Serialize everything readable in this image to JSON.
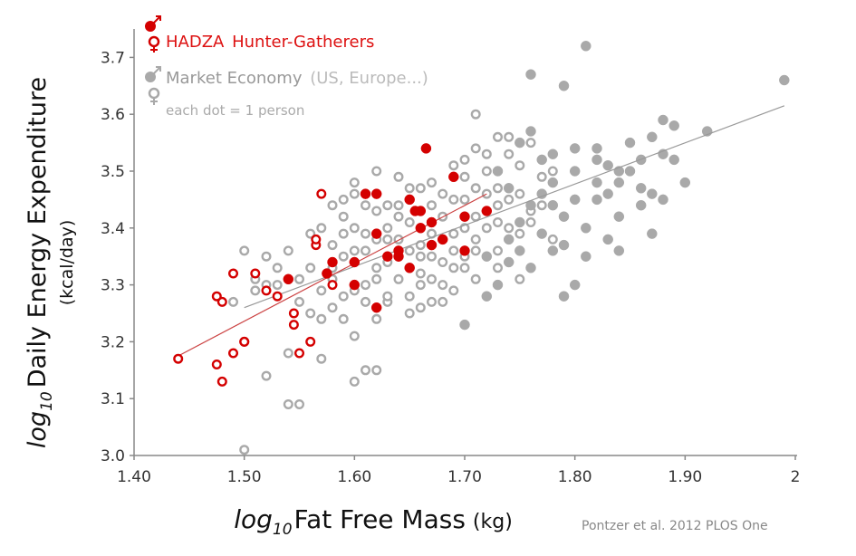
{
  "chart_data": {
    "type": "scatter",
    "ylabel_prefix": "log",
    "ylabel_sub": "10",
    "ylabel": "Daily Energy Expenditure",
    "ylabel_unit": "(kcal/day)",
    "xlabel_prefix": "log",
    "xlabel_sub": "10",
    "xlabel": "Fat Free Mass",
    "xlabel_unit": "(kg)",
    "xlim": [
      1.4,
      2.0
    ],
    "ylim": [
      3.0,
      3.75
    ],
    "x_ticks": [
      "1.40",
      "1.50",
      "1.60",
      "1.70",
      "1.80",
      "1.90",
      "2"
    ],
    "y_ticks": [
      "3.0",
      "3.1",
      "3.2",
      "3.3",
      "3.4",
      "3.5",
      "3.6",
      "3.7"
    ],
    "grid": false,
    "legend": {
      "placement": "top-left",
      "hadza_label": "HADZA",
      "hadza_desc": "Hunter-Gatherers",
      "market_label": "Market Economy",
      "market_desc": "(US, Europe...)",
      "note": "each dot = 1 person"
    },
    "citation": "Pontzer et al. 2012 PLOS One",
    "colors": {
      "hadza": "#d40000",
      "market": "#a9a9a9"
    },
    "series": [
      {
        "name": "HADZA Hunter-Gatherers",
        "fit": {
          "x": [
            1.44,
            1.72
          ],
          "y": [
            3.175,
            3.46
          ]
        },
        "male": [
          [
            1.54,
            3.31
          ],
          [
            1.58,
            3.34
          ],
          [
            1.6,
            3.34
          ],
          [
            1.61,
            3.46
          ],
          [
            1.62,
            3.46
          ],
          [
            1.62,
            3.39
          ],
          [
            1.63,
            3.35
          ],
          [
            1.64,
            3.35
          ],
          [
            1.65,
            3.45
          ],
          [
            1.655,
            3.43
          ],
          [
            1.66,
            3.43
          ],
          [
            1.66,
            3.4
          ],
          [
            1.665,
            3.54
          ],
          [
            1.67,
            3.41
          ],
          [
            1.68,
            3.38
          ],
          [
            1.69,
            3.49
          ],
          [
            1.7,
            3.42
          ],
          [
            1.7,
            3.36
          ],
          [
            1.72,
            3.43
          ],
          [
            1.65,
            3.33
          ],
          [
            1.62,
            3.26
          ],
          [
            1.575,
            3.32
          ],
          [
            1.64,
            3.36
          ],
          [
            1.6,
            3.3
          ],
          [
            1.67,
            3.37
          ]
        ],
        "female": [
          [
            1.44,
            3.17
          ],
          [
            1.475,
            3.28
          ],
          [
            1.48,
            3.27
          ],
          [
            1.49,
            3.32
          ],
          [
            1.5,
            3.2
          ],
          [
            1.51,
            3.32
          ],
          [
            1.52,
            3.29
          ],
          [
            1.53,
            3.28
          ],
          [
            1.545,
            3.25
          ],
          [
            1.55,
            3.18
          ],
          [
            1.56,
            3.2
          ],
          [
            1.565,
            3.37
          ],
          [
            1.57,
            3.46
          ],
          [
            1.58,
            3.3
          ],
          [
            1.49,
            3.18
          ],
          [
            1.475,
            3.16
          ],
          [
            1.48,
            3.13
          ],
          [
            1.5,
            3.2
          ],
          [
            1.565,
            3.38
          ],
          [
            1.545,
            3.23
          ]
        ]
      },
      {
        "name": "Market Economy",
        "fit": {
          "x": [
            1.5,
            1.99
          ],
          "y": [
            3.26,
            3.615
          ]
        },
        "male": [
          [
            1.73,
            3.5
          ],
          [
            1.74,
            3.47
          ],
          [
            1.75,
            3.55
          ],
          [
            1.76,
            3.67
          ],
          [
            1.77,
            3.52
          ],
          [
            1.78,
            3.48
          ],
          [
            1.79,
            3.65
          ],
          [
            1.8,
            3.45
          ],
          [
            1.81,
            3.72
          ],
          [
            1.82,
            3.52
          ],
          [
            1.83,
            3.46
          ],
          [
            1.84,
            3.48
          ],
          [
            1.85,
            3.55
          ],
          [
            1.86,
            3.44
          ],
          [
            1.87,
            3.56
          ],
          [
            1.88,
            3.59
          ],
          [
            1.89,
            3.58
          ],
          [
            1.92,
            3.57
          ],
          [
            1.99,
            3.66
          ],
          [
            1.75,
            3.41
          ],
          [
            1.76,
            3.33
          ],
          [
            1.77,
            3.39
          ],
          [
            1.78,
            3.36
          ],
          [
            1.79,
            3.42
          ],
          [
            1.8,
            3.3
          ],
          [
            1.81,
            3.4
          ],
          [
            1.82,
            3.45
          ],
          [
            1.83,
            3.38
          ],
          [
            1.84,
            3.42
          ],
          [
            1.86,
            3.47
          ],
          [
            1.87,
            3.39
          ],
          [
            1.88,
            3.53
          ],
          [
            1.89,
            3.52
          ],
          [
            1.9,
            3.48
          ],
          [
            1.74,
            3.38
          ],
          [
            1.72,
            3.35
          ],
          [
            1.73,
            3.3
          ],
          [
            1.76,
            3.44
          ],
          [
            1.78,
            3.53
          ],
          [
            1.8,
            3.5
          ],
          [
            1.82,
            3.48
          ],
          [
            1.85,
            3.5
          ],
          [
            1.86,
            3.52
          ],
          [
            1.87,
            3.46
          ],
          [
            1.77,
            3.46
          ],
          [
            1.79,
            3.37
          ],
          [
            1.81,
            3.35
          ],
          [
            1.84,
            3.36
          ],
          [
            1.83,
            3.51
          ],
          [
            1.7,
            3.23
          ],
          [
            1.72,
            3.28
          ],
          [
            1.75,
            3.36
          ],
          [
            1.78,
            3.44
          ],
          [
            1.8,
            3.54
          ],
          [
            1.84,
            3.5
          ],
          [
            1.79,
            3.28
          ],
          [
            1.74,
            3.34
          ],
          [
            1.88,
            3.45
          ],
          [
            1.76,
            3.57
          ],
          [
            1.82,
            3.54
          ]
        ],
        "female": [
          [
            1.49,
            3.27
          ],
          [
            1.5,
            3.36
          ],
          [
            1.5,
            3.01
          ],
          [
            1.51,
            3.31
          ],
          [
            1.52,
            3.3
          ],
          [
            1.52,
            3.14
          ],
          [
            1.53,
            3.33
          ],
          [
            1.54,
            3.09
          ],
          [
            1.54,
            3.18
          ],
          [
            1.55,
            3.27
          ],
          [
            1.55,
            3.09
          ],
          [
            1.56,
            3.25
          ],
          [
            1.57,
            3.24
          ],
          [
            1.57,
            3.17
          ],
          [
            1.58,
            3.33
          ],
          [
            1.59,
            3.28
          ],
          [
            1.59,
            3.24
          ],
          [
            1.6,
            3.13
          ],
          [
            1.61,
            3.15
          ],
          [
            1.62,
            3.15
          ],
          [
            1.6,
            3.4
          ],
          [
            1.61,
            3.3
          ],
          [
            1.62,
            3.33
          ],
          [
            1.63,
            3.27
          ],
          [
            1.63,
            3.38
          ],
          [
            1.64,
            3.31
          ],
          [
            1.64,
            3.42
          ],
          [
            1.65,
            3.36
          ],
          [
            1.65,
            3.28
          ],
          [
            1.66,
            3.32
          ],
          [
            1.66,
            3.26
          ],
          [
            1.67,
            3.35
          ],
          [
            1.67,
            3.44
          ],
          [
            1.68,
            3.3
          ],
          [
            1.68,
            3.38
          ],
          [
            1.69,
            3.33
          ],
          [
            1.69,
            3.45
          ],
          [
            1.7,
            3.4
          ],
          [
            1.7,
            3.52
          ],
          [
            1.71,
            3.36
          ],
          [
            1.71,
            3.47
          ],
          [
            1.72,
            3.4
          ],
          [
            1.72,
            3.53
          ],
          [
            1.73,
            3.44
          ],
          [
            1.73,
            3.36
          ],
          [
            1.74,
            3.4
          ],
          [
            1.74,
            3.56
          ],
          [
            1.75,
            3.46
          ],
          [
            1.75,
            3.51
          ],
          [
            1.76,
            3.43
          ],
          [
            1.58,
            3.37
          ],
          [
            1.59,
            3.42
          ],
          [
            1.6,
            3.36
          ],
          [
            1.61,
            3.39
          ],
          [
            1.62,
            3.43
          ],
          [
            1.63,
            3.4
          ],
          [
            1.64,
            3.38
          ],
          [
            1.65,
            3.41
          ],
          [
            1.66,
            3.37
          ],
          [
            1.67,
            3.39
          ],
          [
            1.68,
            3.42
          ],
          [
            1.69,
            3.36
          ],
          [
            1.7,
            3.45
          ],
          [
            1.71,
            3.42
          ],
          [
            1.72,
            3.46
          ],
          [
            1.73,
            3.41
          ],
          [
            1.74,
            3.45
          ],
          [
            1.57,
            3.29
          ],
          [
            1.58,
            3.31
          ],
          [
            1.59,
            3.35
          ],
          [
            1.6,
            3.29
          ],
          [
            1.61,
            3.36
          ],
          [
            1.62,
            3.31
          ],
          [
            1.63,
            3.34
          ],
          [
            1.64,
            3.35
          ],
          [
            1.65,
            3.33
          ],
          [
            1.66,
            3.35
          ],
          [
            1.67,
            3.31
          ],
          [
            1.68,
            3.34
          ],
          [
            1.69,
            3.39
          ],
          [
            1.7,
            3.33
          ],
          [
            1.71,
            3.38
          ],
          [
            1.56,
            3.33
          ],
          [
            1.55,
            3.31
          ],
          [
            1.54,
            3.36
          ],
          [
            1.53,
            3.3
          ],
          [
            1.59,
            3.45
          ],
          [
            1.6,
            3.48
          ],
          [
            1.62,
            3.5
          ],
          [
            1.64,
            3.49
          ],
          [
            1.66,
            3.47
          ],
          [
            1.68,
            3.46
          ],
          [
            1.7,
            3.49
          ],
          [
            1.72,
            3.5
          ],
          [
            1.73,
            3.56
          ],
          [
            1.74,
            3.53
          ],
          [
            1.76,
            3.55
          ],
          [
            1.77,
            3.49
          ],
          [
            1.78,
            3.5
          ],
          [
            1.57,
            3.4
          ],
          [
            1.58,
            3.26
          ],
          [
            1.61,
            3.27
          ],
          [
            1.63,
            3.28
          ],
          [
            1.65,
            3.25
          ],
          [
            1.67,
            3.27
          ],
          [
            1.69,
            3.29
          ],
          [
            1.71,
            3.31
          ],
          [
            1.73,
            3.33
          ],
          [
            1.75,
            3.31
          ],
          [
            1.62,
            3.24
          ],
          [
            1.6,
            3.21
          ],
          [
            1.66,
            3.3
          ],
          [
            1.68,
            3.27
          ],
          [
            1.7,
            3.35
          ],
          [
            1.52,
            3.35
          ],
          [
            1.51,
            3.29
          ],
          [
            1.56,
            3.39
          ],
          [
            1.58,
            3.44
          ],
          [
            1.6,
            3.46
          ],
          [
            1.63,
            3.44
          ],
          [
            1.65,
            3.47
          ],
          [
            1.67,
            3.48
          ],
          [
            1.69,
            3.51
          ],
          [
            1.71,
            3.54
          ],
          [
            1.73,
            3.47
          ],
          [
            1.75,
            3.39
          ],
          [
            1.76,
            3.41
          ],
          [
            1.77,
            3.44
          ],
          [
            1.78,
            3.38
          ],
          [
            1.71,
            3.6
          ],
          [
            1.61,
            3.44
          ],
          [
            1.64,
            3.44
          ],
          [
            1.66,
            3.43
          ],
          [
            1.59,
            3.39
          ],
          [
            1.62,
            3.38
          ]
        ]
      }
    ]
  }
}
